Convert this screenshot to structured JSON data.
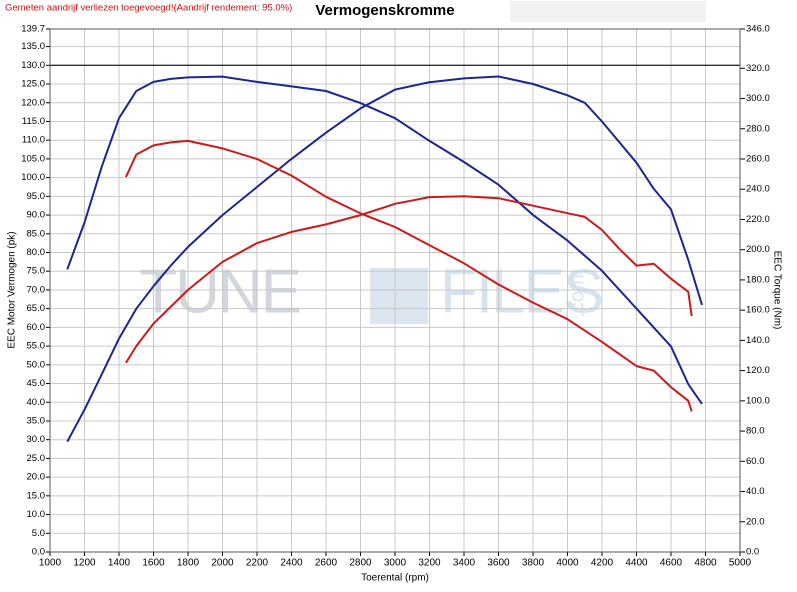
{
  "chart_data": {
    "type": "line",
    "title": "Vermogenskromme",
    "note": "Gemeten aandrijf verliezen toegevoegd!(Aandrijf rendement: 95.0%)",
    "xlabel": "Toerental (rpm)",
    "ylabel": "EEC Motor Vermogen (pk)",
    "y2label": "EEC Torque (Nm)",
    "watermark": {
      "left": "TUNE",
      "right": "FILES",
      "suffix": ".com"
    },
    "grid": true,
    "reference_line": 130,
    "xlim": [
      1000,
      5000
    ],
    "xticks": [
      1000,
      1200,
      1400,
      1600,
      1800,
      2000,
      2200,
      2400,
      2600,
      2800,
      3000,
      3200,
      3400,
      3600,
      3800,
      4000,
      4200,
      4400,
      4600,
      4800,
      5000
    ],
    "ylim": [
      0,
      139.7
    ],
    "yticks": [
      {
        "value": 0,
        "label": "0.0"
      },
      {
        "value": 5,
        "label": "5.0"
      },
      {
        "value": 10,
        "label": "10.0"
      },
      {
        "value": 15,
        "label": "15.0"
      },
      {
        "value": 20,
        "label": "20.0"
      },
      {
        "value": 25,
        "label": "25.0"
      },
      {
        "value": 30,
        "label": "30.0"
      },
      {
        "value": 35,
        "label": "35.0"
      },
      {
        "value": 40,
        "label": "40.0"
      },
      {
        "value": 45,
        "label": "45.0"
      },
      {
        "value": 50,
        "label": "50.0"
      },
      {
        "value": 55,
        "label": "55.0"
      },
      {
        "value": 60,
        "label": "60.0"
      },
      {
        "value": 65,
        "label": "65.0"
      },
      {
        "value": 70,
        "label": "70.0"
      },
      {
        "value": 75,
        "label": "75.0"
      },
      {
        "value": 80,
        "label": "80.0"
      },
      {
        "value": 85,
        "label": "85.0"
      },
      {
        "value": 90,
        "label": "90.0"
      },
      {
        "value": 95,
        "label": "95.0"
      },
      {
        "value": 100,
        "label": "100.0"
      },
      {
        "value": 105,
        "label": "105.0"
      },
      {
        "value": 110,
        "label": "110.0"
      },
      {
        "value": 115,
        "label": "115.0"
      },
      {
        "value": 120,
        "label": "120.0"
      },
      {
        "value": 125,
        "label": "125.0"
      },
      {
        "value": 130,
        "label": "130.0"
      },
      {
        "value": 135,
        "label": "135.0"
      },
      139.7
    ],
    "y2lim": [
      0,
      346
    ],
    "y2ticks": [
      {
        "value": 0,
        "label": "0.0"
      },
      {
        "value": 20,
        "label": "20.0"
      },
      {
        "value": 40,
        "label": "40.0"
      },
      {
        "value": 60,
        "label": "60.0"
      },
      {
        "value": 80,
        "label": "80.0"
      },
      {
        "value": 100,
        "label": "100.0"
      },
      {
        "value": 120,
        "label": "120.0"
      },
      {
        "value": 140,
        "label": "140.0"
      },
      {
        "value": 160,
        "label": "160.0"
      },
      {
        "value": 180,
        "label": "180.0"
      },
      {
        "value": 200,
        "label": "200.0"
      },
      {
        "value": 220,
        "label": "220.0"
      },
      {
        "value": 240,
        "label": "240.0"
      },
      {
        "value": 260,
        "label": "260.0"
      },
      {
        "value": 280,
        "label": "280.0"
      },
      {
        "value": 300,
        "label": "300.0"
      },
      {
        "value": 320,
        "label": "320.0"
      },
      {
        "value": 346,
        "label": "346.0"
      }
    ],
    "series": [
      {
        "color": "#1c2690",
        "x": [
          1100,
          1200,
          1300,
          1400,
          1500,
          1600,
          1700,
          1800,
          2000,
          2200,
          2400,
          2600,
          2800,
          3000,
          3200,
          3400,
          3600,
          3800,
          4000,
          4100,
          4200,
          4400,
          4500,
          4600,
          4700,
          4780
        ],
        "values": [
          29.5,
          38,
          47.5,
          57,
          65,
          71,
          76.5,
          81.5,
          90,
          97.5,
          105,
          112,
          118.5,
          123.5,
          125.5,
          126.5,
          127,
          125,
          122,
          120,
          115,
          104,
          97,
          91.5,
          78,
          66
        ]
      },
      {
        "color": "#1c2690",
        "axis": "y2",
        "x": [
          1100,
          1200,
          1300,
          1400,
          1500,
          1600,
          1700,
          1800,
          2000,
          2200,
          2400,
          2600,
          2800,
          3000,
          3200,
          3400,
          3600,
          3800,
          4000,
          4200,
          4400,
          4600,
          4700,
          4780
        ],
        "values": [
          187,
          218,
          255,
          287,
          305,
          311,
          313,
          314,
          314.5,
          311,
          308,
          305,
          297,
          287,
          272,
          258,
          243,
          223,
          206,
          186,
          161,
          136,
          111,
          98
        ]
      },
      {
        "color": "#cc1a1a",
        "x": [
          1440,
          1500,
          1600,
          1800,
          2000,
          2200,
          2400,
          2600,
          2800,
          3000,
          3200,
          3400,
          3600,
          3800,
          4000,
          4100,
          4200,
          4300,
          4400,
          4500,
          4600,
          4700,
          4720
        ],
        "values": [
          50.5,
          55,
          61,
          70,
          77.5,
          82.5,
          85.5,
          87.5,
          90,
          93,
          94.8,
          95,
          94.5,
          92.5,
          90.5,
          89.5,
          86,
          81,
          76.5,
          77,
          73,
          69.5,
          63
        ]
      },
      {
        "color": "#cc1a1a",
        "axis": "y2",
        "x": [
          1440,
          1500,
          1600,
          1700,
          1800,
          2000,
          2200,
          2400,
          2600,
          2800,
          3000,
          3200,
          3400,
          3600,
          3800,
          4000,
          4200,
          4400,
          4500,
          4600,
          4700,
          4720
        ],
        "values": [
          248,
          263,
          269,
          271,
          272,
          267,
          260,
          249,
          235,
          224,
          215,
          203,
          191,
          177,
          165,
          154,
          139,
          123,
          120,
          109,
          100,
          93
        ]
      }
    ]
  }
}
